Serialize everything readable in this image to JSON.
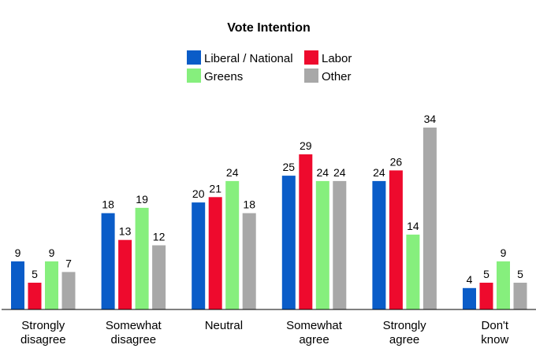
{
  "chart_data": {
    "type": "bar",
    "title": "Vote Intention",
    "xlabel": "",
    "ylabel": "",
    "categories": [
      [
        "Strongly",
        "disagree"
      ],
      [
        "Somewhat",
        "disagree"
      ],
      [
        "Neutral"
      ],
      [
        "Somewhat",
        "agree"
      ],
      [
        "Strongly",
        "agree"
      ],
      [
        "Don't",
        "know"
      ]
    ],
    "series": [
      {
        "name": "Liberal / National",
        "color": "#0a5cc8",
        "values": [
          9,
          18,
          20,
          25,
          24,
          4
        ]
      },
      {
        "name": "Labor",
        "color": "#ee0a2d",
        "values": [
          5,
          13,
          21,
          29,
          26,
          5
        ]
      },
      {
        "name": "Greens",
        "color": "#86ef7d",
        "values": [
          9,
          19,
          24,
          24,
          14,
          9
        ]
      },
      {
        "name": "Other",
        "color": "#a8a8a8",
        "values": [
          7,
          12,
          18,
          24,
          34,
          5
        ]
      }
    ],
    "ylim": [
      0,
      34
    ],
    "legend_position": "top-center",
    "grid": false,
    "data_labels": true
  }
}
